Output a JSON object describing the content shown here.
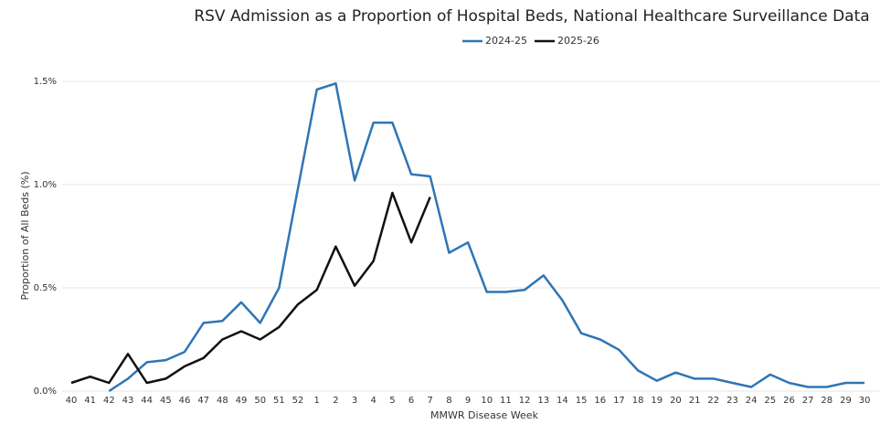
{
  "chart_data": {
    "type": "line",
    "title": "RSV Admission as a Proportion of Hospital Beds, National Healthcare Surveillance Data",
    "x_label": "MMWR Disease Week",
    "y_label": "Proportion of All Beds (%)",
    "categories": [
      "40",
      "41",
      "42",
      "43",
      "44",
      "45",
      "46",
      "47",
      "48",
      "49",
      "50",
      "51",
      "52",
      "1",
      "2",
      "3",
      "4",
      "5",
      "6",
      "7",
      "8",
      "9",
      "10",
      "11",
      "12",
      "13",
      "14",
      "15",
      "16",
      "17",
      "18",
      "19",
      "20",
      "21",
      "22",
      "23",
      "24",
      "25",
      "26",
      "27",
      "28",
      "29",
      "30"
    ],
    "series": [
      {
        "name": "2024-25",
        "color": "#2f75b5",
        "values": [
          null,
          null,
          0.0,
          0.06,
          0.14,
          0.15,
          0.19,
          0.33,
          0.34,
          0.43,
          0.33,
          0.5,
          0.98,
          1.46,
          1.49,
          1.02,
          1.3,
          1.3,
          1.05,
          1.04,
          0.67,
          0.72,
          0.48,
          0.48,
          0.49,
          0.56,
          0.44,
          0.28,
          0.25,
          0.2,
          0.1,
          0.05,
          0.09,
          0.06,
          0.06,
          0.04,
          0.02,
          0.08,
          0.04,
          0.02,
          0.02,
          0.04,
          0.04
        ]
      },
      {
        "name": "2025-26",
        "color": "#111111",
        "values": [
          0.04,
          0.07,
          0.04,
          0.18,
          0.04,
          0.06,
          0.12,
          0.16,
          0.25,
          0.29,
          0.25,
          0.31,
          0.42,
          0.49,
          0.7,
          0.51,
          0.63,
          0.96,
          0.72,
          0.94,
          null,
          null,
          null,
          null,
          null,
          null,
          null,
          null,
          null,
          null,
          null,
          null,
          null,
          null,
          null,
          null,
          null,
          null,
          null,
          null,
          null,
          null,
          null
        ]
      }
    ],
    "ylim": [
      0,
      1.5
    ],
    "yticks": [
      {
        "value": 0,
        "label": "0.0%"
      },
      {
        "value": 0.5,
        "label": "0.5%"
      },
      {
        "value": 1.0,
        "label": "1.0%"
      },
      {
        "value": 1.5,
        "label": "1.5%"
      }
    ],
    "grid": true,
    "legend": "top"
  }
}
